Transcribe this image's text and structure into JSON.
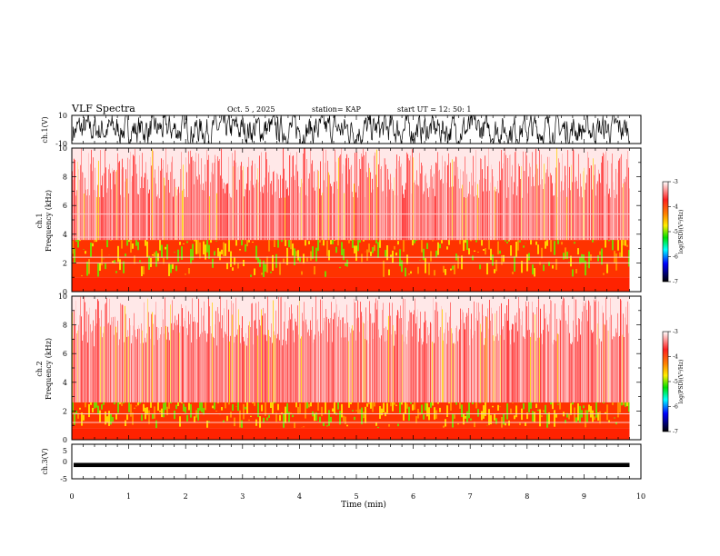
{
  "header": {
    "title": "VLF Spectra",
    "date": "Oct. 5 , 2025",
    "station": "station= KAP",
    "start": "start  UT  =    12: 50: 1"
  },
  "chart_data": [
    {
      "type": "line",
      "title": "VLF Spectra",
      "ylabel": "ch.1(V)",
      "ylim": [
        -10,
        10
      ],
      "yticks": [
        "10",
        "-10"
      ],
      "x_range": [
        0,
        9.8
      ],
      "description_values": "dense noisy waveform spanning most of -10..10 V"
    },
    {
      "type": "heatmap",
      "ylabel": "ch.1\nFrequency (kHz)",
      "ylabel_top": "ch.1",
      "ylabel_bottom": "Frequency (kHz)",
      "ylim": [
        0,
        10
      ],
      "yticks": [
        "0",
        "2",
        "4",
        "6",
        "8",
        "10"
      ],
      "x_range": [
        0,
        9.8
      ],
      "colorbar": {
        "label": "log(PSD)(V²/Hz)",
        "range": [
          -7,
          -3
        ],
        "ticks": [
          "-3",
          "-4",
          "-5",
          "-6",
          "-7"
        ],
        "colors": [
          "#ffffff",
          "#ff0000",
          "#ffdd00",
          "#00ff00",
          "#00ffff",
          "#0000ff",
          "#000000"
        ]
      },
      "bands_khz": [
        2.0,
        2.4,
        3.8,
        5.4
      ],
      "high_power_band_khz": [
        1.0,
        3.6
      ]
    },
    {
      "type": "heatmap",
      "ylabel_top": "ch.2",
      "ylabel_bottom": "Frequency (kHz)",
      "ylim": [
        0,
        10
      ],
      "yticks": [
        "0",
        "2",
        "4",
        "6",
        "8",
        "10"
      ],
      "x_range": [
        0,
        9.8
      ],
      "colorbar": {
        "label": "log(PSD)(V²/Hz)",
        "range": [
          -7,
          -3
        ],
        "ticks": [
          "-3",
          "-4",
          "-5",
          "-6",
          "-7"
        ]
      },
      "bands_khz": [
        1.2,
        1.8
      ],
      "high_power_band_khz": [
        0.8,
        2.6
      ]
    },
    {
      "type": "line",
      "ylabel": "ch.3(V)",
      "ylim": [
        -5,
        5
      ],
      "yticks": [
        "5",
        "0",
        "-5"
      ],
      "level": [
        -1.6,
        -0.4
      ],
      "x_range": [
        0,
        9.8
      ],
      "xlabel": "Time (min)",
      "xlim": [
        0,
        10
      ],
      "xticks": [
        "0",
        "1",
        "2",
        "3",
        "4",
        "5",
        "6",
        "7",
        "8",
        "9",
        "10"
      ]
    }
  ]
}
